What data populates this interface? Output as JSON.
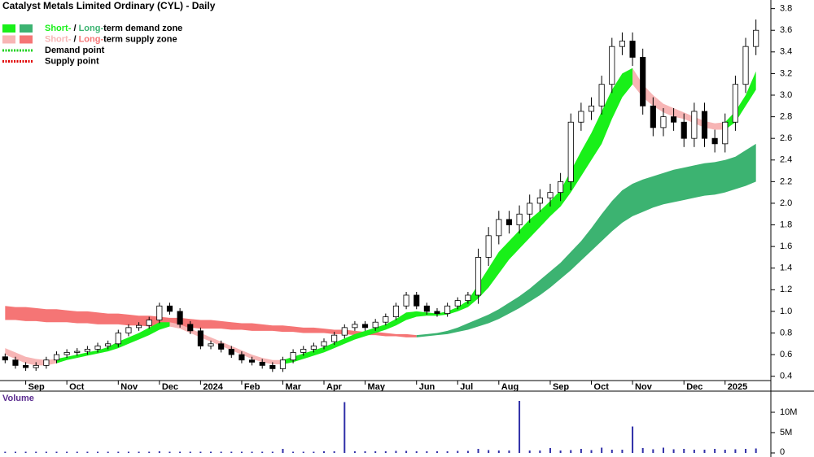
{
  "chart_data": {
    "type": "candlestick",
    "title": "Catalyst Metals Limited Ordinary (CYL) - Daily",
    "categories": [
      null,
      null,
      "Sep",
      null,
      null,
      null,
      "Oct",
      null,
      null,
      null,
      null,
      "Nov",
      null,
      null,
      null,
      "Dec",
      null,
      null,
      null,
      "2024",
      null,
      null,
      null,
      "Feb",
      null,
      null,
      null,
      "Mar",
      null,
      null,
      null,
      "Apr",
      null,
      null,
      null,
      "May",
      null,
      null,
      null,
      null,
      "Jun",
      null,
      null,
      null,
      "Jul",
      null,
      null,
      null,
      "Aug",
      null,
      null,
      null,
      null,
      "Sep",
      null,
      null,
      null,
      "Oct",
      null,
      null,
      null,
      "Nov",
      null,
      null,
      null,
      null,
      "Dec",
      null,
      null,
      null,
      "2025",
      null,
      null,
      null
    ],
    "open": [
      0.58,
      0.55,
      0.5,
      0.48,
      0.5,
      0.55,
      0.6,
      0.62,
      0.63,
      0.65,
      0.68,
      0.7,
      0.8,
      0.85,
      0.87,
      0.92,
      1.05,
      1.0,
      0.88,
      0.82,
      0.68,
      0.7,
      0.65,
      0.6,
      0.55,
      0.53,
      0.5,
      0.47,
      0.55,
      0.62,
      0.65,
      0.68,
      0.72,
      0.78,
      0.85,
      0.88,
      0.85,
      0.9,
      0.95,
      1.05,
      1.15,
      1.05,
      1.0,
      0.98,
      1.05,
      1.1,
      1.15,
      1.5,
      1.7,
      1.85,
      1.8,
      1.9,
      2.0,
      2.05,
      2.1,
      2.2,
      2.75,
      2.85,
      2.9,
      3.1,
      3.45,
      3.5,
      3.35,
      2.9,
      2.7,
      2.8,
      2.75,
      2.6,
      2.85,
      2.6,
      2.55,
      2.75,
      3.1,
      3.45
    ],
    "high": [
      0.61,
      0.58,
      0.53,
      0.53,
      0.58,
      0.63,
      0.65,
      0.66,
      0.68,
      0.71,
      0.73,
      0.83,
      0.88,
      0.9,
      0.95,
      1.08,
      1.08,
      1.03,
      0.91,
      0.85,
      0.73,
      0.73,
      0.68,
      0.63,
      0.58,
      0.56,
      0.53,
      0.58,
      0.65,
      0.68,
      0.71,
      0.75,
      0.81,
      0.88,
      0.91,
      0.91,
      0.93,
      0.98,
      1.08,
      1.18,
      1.18,
      1.08,
      1.03,
      1.08,
      1.13,
      1.18,
      1.58,
      1.78,
      1.93,
      1.93,
      1.98,
      2.08,
      2.13,
      2.18,
      2.28,
      2.83,
      2.93,
      2.98,
      3.18,
      3.53,
      3.58,
      3.58,
      3.43,
      2.98,
      2.88,
      2.88,
      2.83,
      2.93,
      2.93,
      2.68,
      2.83,
      3.18,
      3.53,
      3.7
    ],
    "low": [
      0.52,
      0.47,
      0.45,
      0.45,
      0.47,
      0.52,
      0.57,
      0.59,
      0.6,
      0.62,
      0.65,
      0.67,
      0.77,
      0.82,
      0.84,
      0.89,
      0.97,
      0.85,
      0.79,
      0.65,
      0.65,
      0.62,
      0.57,
      0.52,
      0.5,
      0.47,
      0.44,
      0.44,
      0.52,
      0.59,
      0.62,
      0.65,
      0.69,
      0.75,
      0.82,
      0.82,
      0.82,
      0.87,
      0.92,
      1.02,
      1.02,
      0.97,
      0.95,
      0.95,
      1.02,
      1.07,
      1.07,
      1.42,
      1.62,
      1.72,
      1.72,
      1.82,
      1.92,
      1.97,
      2.02,
      2.12,
      2.67,
      2.77,
      2.82,
      3.02,
      3.37,
      3.27,
      2.82,
      2.62,
      2.62,
      2.67,
      2.52,
      2.52,
      2.52,
      2.47,
      2.47,
      2.67,
      3.02,
      3.37
    ],
    "close": [
      0.55,
      0.5,
      0.48,
      0.5,
      0.55,
      0.6,
      0.62,
      0.63,
      0.65,
      0.68,
      0.7,
      0.8,
      0.85,
      0.87,
      0.92,
      1.05,
      1.0,
      0.88,
      0.82,
      0.68,
      0.7,
      0.65,
      0.6,
      0.55,
      0.53,
      0.5,
      0.47,
      0.55,
      0.62,
      0.65,
      0.68,
      0.72,
      0.78,
      0.85,
      0.88,
      0.85,
      0.9,
      0.95,
      1.05,
      1.15,
      1.05,
      1.0,
      0.98,
      1.05,
      1.1,
      1.15,
      1.5,
      1.7,
      1.85,
      1.8,
      1.9,
      2.0,
      2.05,
      2.1,
      2.2,
      2.75,
      2.85,
      2.9,
      3.1,
      3.45,
      3.5,
      3.35,
      2.9,
      2.7,
      2.8,
      2.75,
      2.6,
      2.85,
      2.6,
      2.55,
      2.75,
      3.1,
      3.45,
      3.6
    ],
    "up_color": "#ffffff",
    "down_color": "#000000",
    "ylim": [
      0.36,
      3.88
    ],
    "yticks": [
      0.4,
      0.6,
      0.8,
      {
        "value": 1,
        "label": "1.0"
      },
      1.2,
      1.4,
      1.6,
      1.8,
      {
        "value": 2,
        "label": "2.0"
      },
      2.2,
      2.4,
      2.6,
      2.8,
      {
        "value": 3,
        "label": "3.0"
      },
      3.2,
      3.4,
      3.6,
      3.8
    ],
    "zones": [
      {
        "color": "#f57575",
        "upper": [
          1.05,
          1.04,
          1.04,
          1.03,
          1.02,
          1.02,
          1.01,
          1.0,
          1.0,
          0.99,
          0.98,
          0.98,
          0.97,
          0.96,
          0.96,
          0.95,
          0.94,
          0.94,
          0.93,
          0.92,
          0.92,
          0.91,
          0.9,
          0.89,
          0.89,
          0.88,
          0.87,
          0.87,
          0.86,
          0.85,
          0.85,
          0.84,
          0.83,
          0.83,
          0.82,
          0.81,
          0.81,
          0.8,
          0.79,
          0.79,
          0.78,
          null,
          null,
          null,
          null,
          null,
          null,
          null,
          null,
          null,
          null,
          null,
          null,
          null,
          null,
          null,
          null,
          null,
          null,
          null,
          null,
          null,
          null,
          null,
          null,
          null,
          null,
          null,
          null,
          null,
          null,
          null,
          null,
          null
        ],
        "lower": [
          0.92,
          0.92,
          0.91,
          0.91,
          0.9,
          0.9,
          0.9,
          0.89,
          0.89,
          0.88,
          0.88,
          0.88,
          0.87,
          0.87,
          0.86,
          0.86,
          0.86,
          0.85,
          0.85,
          0.84,
          0.84,
          0.84,
          0.83,
          0.83,
          0.82,
          0.82,
          0.82,
          0.81,
          0.81,
          0.8,
          0.8,
          0.8,
          0.79,
          0.79,
          0.78,
          0.78,
          0.78,
          0.77,
          0.77,
          0.76,
          0.76,
          null,
          null,
          null,
          null,
          null,
          null,
          null,
          null,
          null,
          null,
          null,
          null,
          null,
          null,
          null,
          null,
          null,
          null,
          null,
          null,
          null,
          null,
          null,
          null,
          null,
          null,
          null,
          null,
          null,
          null,
          null,
          null,
          null
        ]
      },
      {
        "color": "#3cb371",
        "upper": [
          null,
          null,
          null,
          null,
          null,
          null,
          null,
          null,
          null,
          null,
          null,
          null,
          null,
          null,
          null,
          null,
          null,
          null,
          null,
          null,
          null,
          null,
          null,
          null,
          null,
          null,
          null,
          null,
          null,
          null,
          null,
          null,
          null,
          null,
          null,
          null,
          null,
          null,
          null,
          null,
          0.78,
          0.79,
          0.8,
          0.82,
          0.85,
          0.89,
          0.93,
          0.97,
          1.02,
          1.08,
          1.14,
          1.21,
          1.29,
          1.37,
          1.45,
          1.55,
          1.65,
          1.77,
          1.9,
          2.02,
          2.12,
          2.18,
          2.22,
          2.25,
          2.28,
          2.31,
          2.33,
          2.35,
          2.37,
          2.38,
          2.4,
          2.43,
          2.49,
          2.55
        ],
        "lower": [
          null,
          null,
          null,
          null,
          null,
          null,
          null,
          null,
          null,
          null,
          null,
          null,
          null,
          null,
          null,
          null,
          null,
          null,
          null,
          null,
          null,
          null,
          null,
          null,
          null,
          null,
          null,
          null,
          null,
          null,
          null,
          null,
          null,
          null,
          null,
          null,
          null,
          null,
          null,
          null,
          0.76,
          0.77,
          0.78,
          0.79,
          0.81,
          0.83,
          0.86,
          0.89,
          0.93,
          0.98,
          1.03,
          1.09,
          1.15,
          1.22,
          1.3,
          1.38,
          1.47,
          1.56,
          1.65,
          1.74,
          1.82,
          1.88,
          1.92,
          1.96,
          1.99,
          2.01,
          2.03,
          2.05,
          2.07,
          2.08,
          2.1,
          2.13,
          2.16,
          2.2
        ]
      },
      {
        "color": "#f7b5b5",
        "upper": [
          0.66,
          0.62,
          0.58,
          0.56,
          0.55,
          0.56,
          null,
          null,
          null,
          null,
          null,
          null,
          null,
          null,
          null,
          null,
          0.9,
          0.88,
          0.84,
          0.8,
          0.76,
          0.72,
          0.68,
          0.64,
          0.6,
          0.57,
          0.55,
          0.55,
          null,
          null,
          null,
          null,
          null,
          null,
          null,
          null,
          null,
          null,
          null,
          null,
          null,
          null,
          null,
          null,
          null,
          null,
          null,
          null,
          null,
          null,
          null,
          null,
          null,
          null,
          null,
          null,
          null,
          null,
          null,
          null,
          null,
          3.25,
          3.1,
          3.0,
          2.92,
          2.88,
          2.84,
          2.8,
          2.76,
          2.74,
          2.75,
          null,
          null,
          null
        ],
        "lower": [
          0.6,
          0.56,
          0.52,
          0.5,
          0.5,
          0.52,
          null,
          null,
          null,
          null,
          null,
          null,
          null,
          null,
          null,
          null,
          0.86,
          0.84,
          0.8,
          0.76,
          0.72,
          0.68,
          0.64,
          0.6,
          0.56,
          0.53,
          0.51,
          0.51,
          null,
          null,
          null,
          null,
          null,
          null,
          null,
          null,
          null,
          null,
          null,
          null,
          null,
          null,
          null,
          null,
          null,
          null,
          null,
          null,
          null,
          null,
          null,
          null,
          null,
          null,
          null,
          null,
          null,
          null,
          null,
          null,
          null,
          3.1,
          2.98,
          2.9,
          2.84,
          2.8,
          2.78,
          2.74,
          2.7,
          2.68,
          2.68,
          null,
          null,
          null
        ]
      },
      {
        "color": "#19f019",
        "upper": [
          null,
          null,
          null,
          null,
          null,
          0.56,
          0.58,
          0.6,
          0.62,
          0.64,
          0.67,
          0.72,
          0.76,
          0.8,
          0.85,
          0.9,
          0.9,
          null,
          null,
          null,
          null,
          null,
          null,
          null,
          null,
          null,
          null,
          0.55,
          0.58,
          0.61,
          0.64,
          0.67,
          0.71,
          0.75,
          0.79,
          0.82,
          0.85,
          0.88,
          0.93,
          0.99,
          1.0,
          0.99,
          0.98,
          1.0,
          1.04,
          1.1,
          1.25,
          1.4,
          1.55,
          1.65,
          1.75,
          1.85,
          1.93,
          2.02,
          2.12,
          2.3,
          2.48,
          2.65,
          2.85,
          3.05,
          3.2,
          3.25,
          null,
          null,
          null,
          null,
          null,
          null,
          null,
          null,
          2.75,
          2.85,
          3.0,
          3.22
        ],
        "lower": [
          null,
          null,
          null,
          null,
          null,
          0.52,
          0.55,
          0.57,
          0.59,
          0.61,
          0.63,
          0.66,
          0.7,
          0.74,
          0.78,
          0.83,
          0.86,
          null,
          null,
          null,
          null,
          null,
          null,
          null,
          null,
          null,
          null,
          0.51,
          0.53,
          0.56,
          0.59,
          0.62,
          0.66,
          0.7,
          0.74,
          0.77,
          0.8,
          0.83,
          0.87,
          0.92,
          0.95,
          0.96,
          0.96,
          0.97,
          1.0,
          1.04,
          1.12,
          1.22,
          1.35,
          1.48,
          1.58,
          1.68,
          1.78,
          1.88,
          1.97,
          2.1,
          2.25,
          2.4,
          2.55,
          2.78,
          2.98,
          3.1,
          null,
          null,
          null,
          null,
          null,
          null,
          null,
          null,
          2.68,
          2.75,
          2.9,
          3.05
        ]
      }
    ],
    "legend": [
      {
        "short": "Short-",
        "sep": " / ",
        "long": "Long-",
        "rest": "term demand zone",
        "short_color": "#19f019",
        "long_color": "#3cb371"
      },
      {
        "short": "Short-",
        "sep": " / ",
        "long": "Long-",
        "rest": "term supply zone",
        "short_color": "#f7b5b5",
        "long_color": "#f57575"
      },
      {
        "label": "Demand point",
        "color": "#19d019"
      },
      {
        "label": "Supply point",
        "color": "#e00000"
      }
    ],
    "volume": {
      "title": "Volume",
      "color": "#2f2fa8",
      "values": [
        0.3,
        0.3,
        0.3,
        0.3,
        0.3,
        0.3,
        0.3,
        0.3,
        0.3,
        0.3,
        0.3,
        0.3,
        0.3,
        0.3,
        0.3,
        0.4,
        0.3,
        0.3,
        0.3,
        0.3,
        0.3,
        0.3,
        0.3,
        0.3,
        0.3,
        0.3,
        0.3,
        1.0,
        0.3,
        0.3,
        0.3,
        0.4,
        0.4,
        12.5,
        0.4,
        0.4,
        0.4,
        0.4,
        0.5,
        0.5,
        0.4,
        0.4,
        0.4,
        0.4,
        0.5,
        0.5,
        1.0,
        0.7,
        0.6,
        0.6,
        12.8,
        0.6,
        0.6,
        1.2,
        0.6,
        0.7,
        1.0,
        0.7,
        1.3,
        0.8,
        0.8,
        6.5,
        1.2,
        0.9,
        1.3,
        0.9,
        1.0,
        0.8,
        0.8,
        1.0,
        0.8,
        0.9,
        1.0,
        1.1
      ],
      "ylim": [
        0,
        15
      ],
      "yticks": [
        0,
        {
          "value": 5,
          "label": "5M"
        },
        {
          "value": 10,
          "label": "10M"
        }
      ]
    }
  }
}
